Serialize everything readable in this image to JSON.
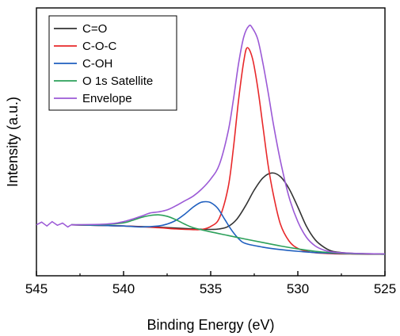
{
  "chart_data": {
    "type": "line",
    "title": "",
    "xlabel": "Binding Energy (eV)",
    "ylabel": "Intensity (a.u.)",
    "xlim": [
      545,
      525
    ],
    "x_reversed": true,
    "ylim": [
      0,
      1
    ],
    "y_tick_labels": "hidden",
    "x_ticks": [
      545,
      540,
      535,
      530,
      525
    ],
    "x_tick_labels": [
      "545",
      "540",
      "535",
      "530",
      "525"
    ],
    "grid": false,
    "legend_position": "top-left",
    "baseline": {
      "x": [
        545,
        544.7,
        544.4,
        544.1,
        543.8,
        543.5,
        543.2,
        543.0
      ],
      "y": [
        0.177,
        0.188,
        0.172,
        0.19,
        0.175,
        0.184,
        0.168,
        0.177
      ],
      "color": "#9b59d6"
    },
    "series": [
      {
        "name": "C=O",
        "color": "#333333",
        "x": [
          543.0,
          540,
          538,
          536,
          535,
          534.5,
          534,
          533.5,
          533,
          532.5,
          532,
          531.5,
          531,
          530.5,
          530,
          529.5,
          529,
          528.5,
          528,
          527,
          526,
          525
        ],
        "y": [
          0.177,
          0.172,
          0.167,
          0.16,
          0.158,
          0.16,
          0.17,
          0.2,
          0.255,
          0.32,
          0.37,
          0.39,
          0.375,
          0.325,
          0.25,
          0.17,
          0.115,
          0.085,
          0.068,
          0.06,
          0.058,
          0.057
        ]
      },
      {
        "name": "C-O-C",
        "color": "#e8282a",
        "x": [
          543.0,
          540,
          538,
          537,
          536,
          535.5,
          535,
          534.5,
          534,
          533.7,
          533.4,
          533.1,
          532.9,
          532.6,
          532.3,
          532,
          531.7,
          531.4,
          531,
          530.5,
          530,
          529.5,
          529,
          528,
          527,
          526,
          525
        ],
        "y": [
          0.177,
          0.172,
          0.165,
          0.16,
          0.157,
          0.158,
          0.17,
          0.205,
          0.33,
          0.49,
          0.69,
          0.85,
          0.905,
          0.86,
          0.74,
          0.58,
          0.42,
          0.3,
          0.18,
          0.11,
          0.08,
          0.068,
          0.062,
          0.058,
          0.057,
          0.056,
          0.056
        ]
      },
      {
        "name": "C-OH",
        "color": "#1f5fbf",
        "x": [
          543.0,
          540,
          539,
          538,
          537.5,
          537,
          536.5,
          536,
          535.6,
          535.3,
          535,
          534.6,
          534.2,
          533.8,
          533.4,
          533,
          532,
          531,
          530,
          529,
          528,
          527,
          526,
          525
        ],
        "y": [
          0.177,
          0.172,
          0.168,
          0.172,
          0.18,
          0.195,
          0.22,
          0.25,
          0.268,
          0.272,
          0.268,
          0.245,
          0.2,
          0.155,
          0.12,
          0.1,
          0.085,
          0.075,
          0.068,
          0.063,
          0.06,
          0.058,
          0.057,
          0.056
        ]
      },
      {
        "name": "O 1s Satellite",
        "color": "#2ca05a",
        "x": [
          543.0,
          541,
          540,
          539.5,
          539,
          538.5,
          538,
          537.5,
          537,
          536.5,
          536,
          535,
          534,
          533,
          532,
          531,
          530,
          529,
          528,
          527,
          526,
          525
        ],
        "y": [
          0.177,
          0.178,
          0.185,
          0.195,
          0.207,
          0.215,
          0.218,
          0.212,
          0.198,
          0.18,
          0.165,
          0.148,
          0.133,
          0.118,
          0.104,
          0.09,
          0.078,
          0.068,
          0.062,
          0.058,
          0.057,
          0.056
        ]
      },
      {
        "name": "Envelope",
        "color": "#9b59d6",
        "x": [
          543.0,
          541,
          540,
          539,
          538.5,
          538,
          537.5,
          537,
          536.5,
          536,
          535.5,
          535,
          534.5,
          534,
          533.7,
          533.4,
          533.1,
          532.8,
          532.6,
          532.3,
          532,
          531.7,
          531.4,
          531,
          530.5,
          530,
          529.5,
          529,
          528.5,
          528,
          527,
          526,
          525
        ],
        "y": [
          0.177,
          0.18,
          0.19,
          0.212,
          0.225,
          0.23,
          0.238,
          0.255,
          0.275,
          0.295,
          0.325,
          0.365,
          0.425,
          0.56,
          0.69,
          0.84,
          0.95,
          0.995,
          0.985,
          0.94,
          0.84,
          0.72,
          0.59,
          0.44,
          0.29,
          0.19,
          0.125,
          0.09,
          0.073,
          0.065,
          0.06,
          0.058,
          0.057
        ]
      }
    ]
  }
}
